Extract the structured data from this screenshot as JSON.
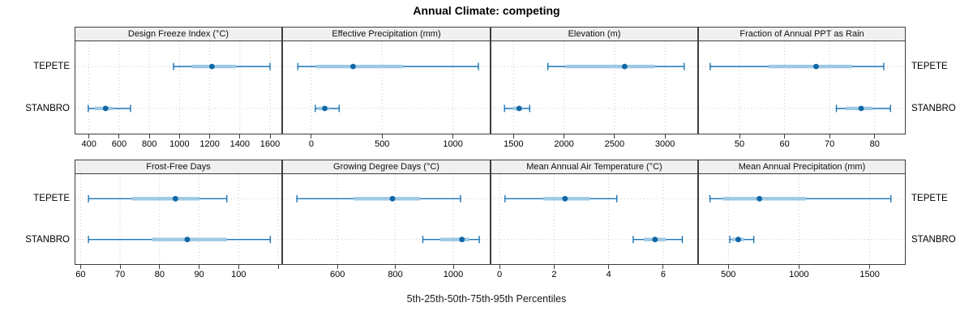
{
  "title": "Annual Climate: competing",
  "xlabel": "5th-25th-50th-75th-95th Percentiles",
  "percentile_levels": [
    "5th",
    "25th",
    "50th",
    "75th",
    "95th"
  ],
  "colors": {
    "line": "#1b74b4",
    "band": "#9ec9e4",
    "dot": "#0f67a5",
    "strip_bg": "#f0f0f0",
    "border": "#3e3e3e",
    "grid": "#c8c8c8"
  },
  "chart_data": {
    "type": "dotplot-percentile-panels",
    "layout": "2 rows x 4 columns of panels, percentile whiskers per site",
    "rows": [
      "TEPETE",
      "STANBRO"
    ],
    "panels": [
      {
        "title": "Design Freeze Index (°C)",
        "xlim": [
          310,
          1675
        ],
        "ticks": [
          400,
          600,
          800,
          1000,
          1200,
          1400,
          1600
        ],
        "series": [
          [
            960,
            1080,
            1215,
            1375,
            1600
          ],
          [
            395,
            440,
            510,
            560,
            675
          ]
        ]
      },
      {
        "title": "Effective Precipitation (mm)",
        "xlim": [
          -200,
          1260
        ],
        "ticks": [
          0,
          500,
          1000
        ],
        "series": [
          [
            -95,
            30,
            295,
            650,
            1180
          ],
          [
            28,
            50,
            95,
            125,
            197
          ]
        ]
      },
      {
        "title": "Elevation (m)",
        "xlim": [
          1280,
          3320
        ],
        "ticks": [
          1500,
          2000,
          2500,
          3000
        ],
        "series": [
          [
            1840,
            2020,
            2600,
            2900,
            3190
          ],
          [
            1410,
            1490,
            1555,
            1590,
            1660
          ]
        ]
      },
      {
        "title": "Fraction of Annual PPT as Rain",
        "xlim": [
          41,
          86.7
        ],
        "ticks": [
          50,
          60,
          70,
          80
        ],
        "series": [
          [
            43.5,
            56.5,
            67,
            75,
            82
          ],
          [
            71.5,
            73.5,
            77,
            79.5,
            83.5
          ]
        ]
      },
      {
        "title": "Frost-Free Days",
        "xlim": [
          58.7,
          110.8
        ],
        "ticks": [
          60,
          70,
          80,
          90,
          100
        ],
        "extra_ticks": [
          110
        ],
        "series": [
          [
            62,
            73,
            84,
            90,
            97
          ],
          [
            62,
            78,
            87,
            97,
            108
          ]
        ]
      },
      {
        "title": "Growing Degree Days (°C)",
        "xlim": [
          412,
          1126
        ],
        "ticks": [
          600,
          800,
          1000
        ],
        "series": [
          [
            460,
            655,
            790,
            885,
            1025
          ],
          [
            895,
            955,
            1030,
            1055,
            1090
          ]
        ]
      },
      {
        "title": "Mean Annual Air Temperature (°C)",
        "xlim": [
          -0.3,
          7.25
        ],
        "ticks": [
          0,
          2,
          4,
          6
        ],
        "series": [
          [
            0.2,
            1.6,
            2.4,
            3.3,
            4.3
          ],
          [
            4.9,
            5.3,
            5.7,
            6.1,
            6.7
          ]
        ]
      },
      {
        "title": "Mean Annual Precipitation (mm)",
        "xlim": [
          292,
          1749
        ],
        "ticks": [
          500,
          1000,
          1500
        ],
        "series": [
          [
            370,
            460,
            720,
            1050,
            1650
          ],
          [
            510,
            525,
            570,
            610,
            680
          ]
        ]
      }
    ]
  }
}
